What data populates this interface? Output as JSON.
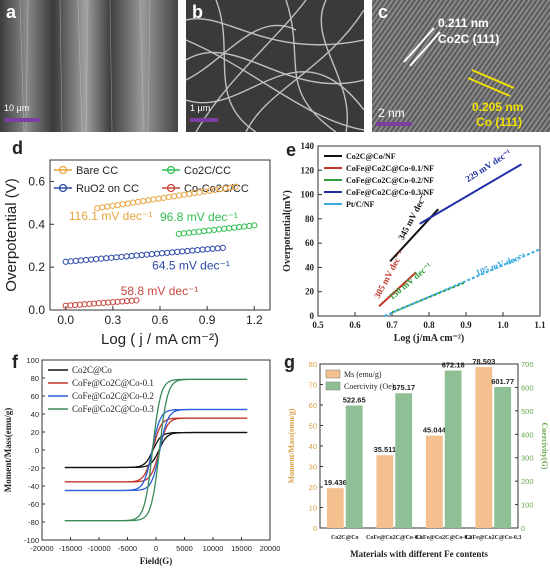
{
  "panels": {
    "a": {
      "letter": "a",
      "scale_bar": "10 μm"
    },
    "b": {
      "letter": "b",
      "scale_bar": "1 μm"
    },
    "c": {
      "letter": "c",
      "scale_bar": "2 nm",
      "ann1_val": "0.211 nm",
      "ann1_phase": "Co2C (111)",
      "ann2_val": "0.205 nm",
      "ann2_phase": "Co (111)"
    }
  },
  "chart_d": {
    "letter": "d",
    "type": "scatter",
    "xlabel": "Log ( j / mA cm⁻²)",
    "ylabel": "Overpotential (V)",
    "xlim": [
      -0.1,
      1.3
    ],
    "ylim": [
      0.0,
      0.7
    ],
    "xticks": [
      "0.0",
      "0.3",
      "0.6",
      "0.9",
      "1.2"
    ],
    "yticks": [
      "0.0",
      "0.2",
      "0.4",
      "0.6"
    ],
    "legend": [
      "Bare CC",
      "Co2C/CC",
      "RuO2 on CC",
      "Co-Co2C/CC"
    ],
    "series": [
      {
        "name": "Bare CC",
        "color": "#e8a33c",
        "x0": 0.2,
        "x1": 1.08,
        "y0": 0.475,
        "y1": 0.575,
        "n": 28,
        "tafel": "116.1 mV dec⁻¹"
      },
      {
        "name": "Co2C/CC",
        "color": "#2fbf4f",
        "x0": 0.72,
        "x1": 1.2,
        "y0": 0.355,
        "y1": 0.395,
        "n": 16,
        "tafel": "96.8 mV dec⁻¹"
      },
      {
        "name": "RuO2 on CC",
        "color": "#2b4aa8",
        "x0": 0.0,
        "x1": 1.0,
        "y0": 0.225,
        "y1": 0.29,
        "n": 32,
        "tafel": "64.5 mV dec⁻¹"
      },
      {
        "name": "Co-Co2C/CC",
        "color": "#c8473f",
        "x0": 0.0,
        "x1": 0.45,
        "y0": 0.02,
        "y1": 0.045,
        "n": 16,
        "tafel": "58.8 mV dec⁻¹"
      }
    ]
  },
  "chart_e": {
    "letter": "e",
    "type": "line",
    "xlabel": "Log (j/mA cm⁻²)",
    "ylabel": "Overpotential(mV)",
    "xlim": [
      0.5,
      1.1
    ],
    "ylim": [
      0,
      140
    ],
    "xticks": [
      "0.5",
      "0.6",
      "0.7",
      "0.8",
      "0.9",
      "1.0",
      "1.1"
    ],
    "yticks": [
      "0",
      "20",
      "40",
      "60",
      "80",
      "100",
      "120",
      "140"
    ],
    "legend": [
      "Co2C@Co/NF",
      "CoFe@Co2C@Co-0.1/NF",
      "CoFe@Co2C@Co-0.2/NF",
      "CoFe@Co2C@Co-0.3/NF",
      "Pt/C/NF"
    ],
    "series": [
      {
        "name": "Co2C@Co/NF",
        "color": "#111111",
        "dash": "",
        "x": [
          0.695,
          0.825
        ],
        "y": [
          45,
          88
        ],
        "tafel": "345 mV dec⁻¹"
      },
      {
        "name": "CoFe@Co2C@Co-0.1/NF",
        "color": "#c0392b",
        "dash": "",
        "x": [
          0.665,
          0.765
        ],
        "y": [
          8,
          36
        ],
        "tafel": "305 mV dec⁻¹"
      },
      {
        "name": "CoFe@Co2C@Co-0.2/NF",
        "color": "#2e9d3a",
        "dash": "3,2",
        "x": [
          0.7,
          0.9
        ],
        "y": [
          3,
          28
        ],
        "tafel": "150 mV dec⁻¹"
      },
      {
        "name": "CoFe@Co2C@Co-0.3/NF",
        "color": "#1f2fa8",
        "dash": "",
        "x": [
          0.775,
          1.05
        ],
        "y": [
          76,
          125
        ],
        "tafel": "229 mV dec⁻¹"
      },
      {
        "name": "Pt/C/NF",
        "color": "#3aaae0",
        "dash": "3,2",
        "x": [
          0.68,
          1.1
        ],
        "y": [
          0,
          55
        ],
        "tafel": "105 mV dec⁻¹"
      }
    ]
  },
  "chart_f": {
    "letter": "f",
    "type": "line",
    "xlabel": "Field(G)",
    "ylabel": "Moment/Mass(emu/g)",
    "xlim": [
      -20000,
      20000
    ],
    "ylim": [
      -100,
      100
    ],
    "xticks": [
      "-20000",
      "-15000",
      "-10000",
      "-5000",
      "0",
      "5000",
      "10000",
      "15000",
      "20000"
    ],
    "yticks": [
      "-100",
      "-80",
      "-60",
      "-40",
      "-20",
      "0",
      "20",
      "40",
      "60",
      "80",
      "100"
    ],
    "legend": [
      "Co2C@Co",
      "CoFe@Co2C@Co-0.1",
      "CoFe@Co2C@Co-0.2",
      "CoFe@Co2C@Co-0.3"
    ],
    "series": [
      {
        "name": "Co2C@Co",
        "color": "#111111",
        "ms": 19.4,
        "hc": 523
      },
      {
        "name": "CoFe@Co2C@Co-0.1",
        "color": "#c0392b",
        "ms": 35.5,
        "hc": 575
      },
      {
        "name": "CoFe@Co2C@Co-0.2",
        "color": "#2a5fd8",
        "ms": 45.0,
        "hc": 672
      },
      {
        "name": "CoFe@Co2C@Co-0.3",
        "color": "#3a8a5a",
        "ms": 78.5,
        "hc": 602
      }
    ],
    "field_range": [
      -16000,
      16000
    ]
  },
  "chart_g": {
    "letter": "g",
    "type": "bar",
    "xlabel": "Materials with different Fe contents",
    "ylabel_left": "Moment/Mass(emu/g)",
    "ylabel_right": "Coercivity(G)",
    "ylim_left": [
      0,
      80
    ],
    "ylim_right": [
      0,
      700
    ],
    "yticks_left": [
      "0",
      "10",
      "20",
      "30",
      "40",
      "50",
      "60",
      "70",
      "80"
    ],
    "yticks_right": [
      "0",
      "100",
      "200",
      "300",
      "400",
      "500",
      "600",
      "700"
    ],
    "categories": [
      "Co2C@Co",
      "CoFe@Co2C@Co-0.1",
      "CoFe@Co2C@Co-0.2",
      "CoFe@Co2C@Co-0.3"
    ],
    "legend": [
      "Ms (emu/g)",
      "Coercivity (Oe)"
    ],
    "series": [
      {
        "name": "Ms (emu/g)",
        "color": "#f5c08f",
        "values": [
          19.436,
          35.511,
          45.044,
          78.503
        ],
        "labels": [
          "19.436",
          "35.511",
          "45.044",
          "78.503"
        ]
      },
      {
        "name": "Coercivity (Oe)",
        "color": "#8fbf95",
        "values": [
          522.65,
          575.17,
          672.18,
          601.77
        ],
        "labels": [
          "522.65",
          "575.17",
          "672.18",
          "601.77"
        ]
      }
    ],
    "left_axis_color": "#d9a24a",
    "right_axis_color": "#6aa84f"
  }
}
